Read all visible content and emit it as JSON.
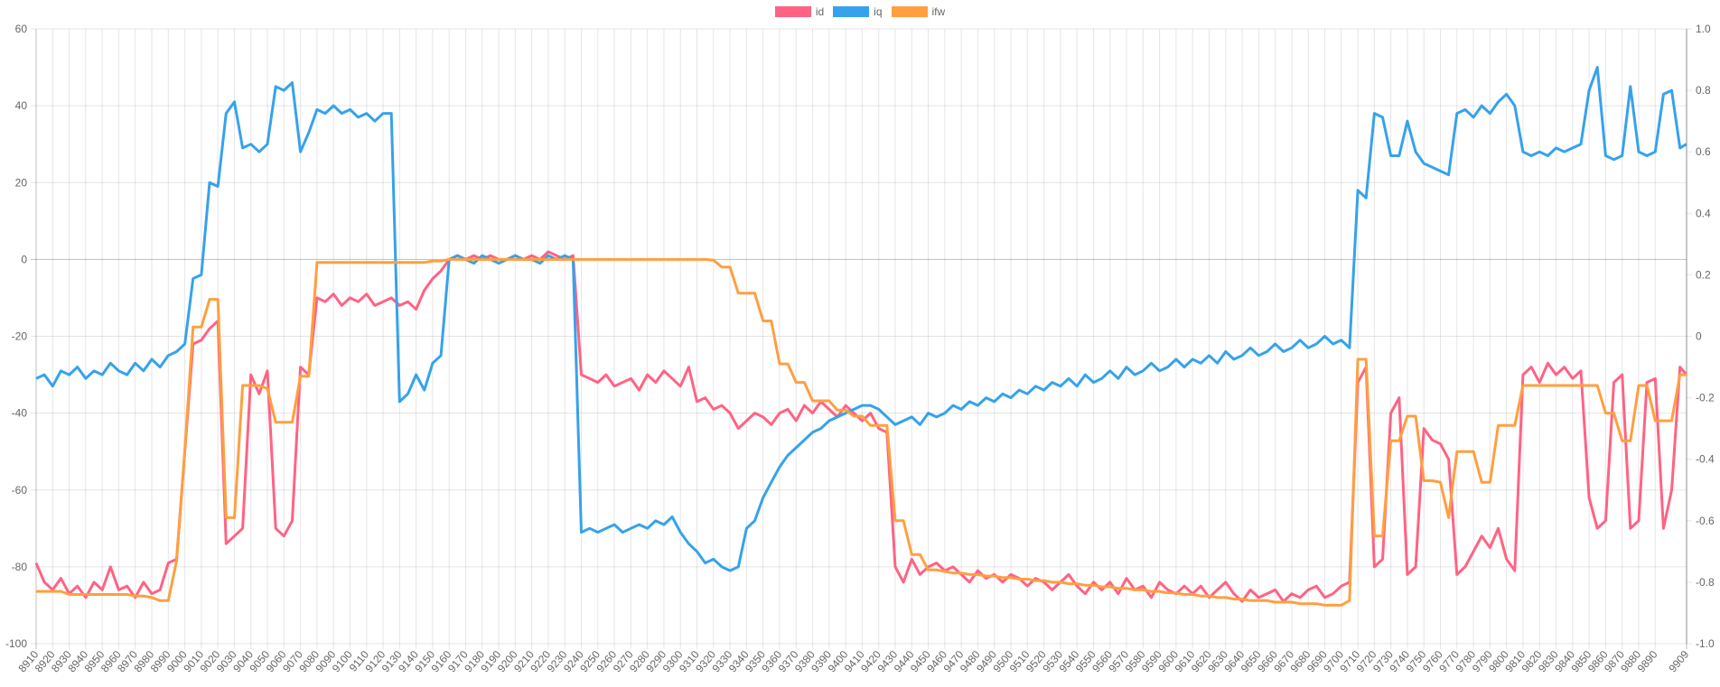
{
  "chart_data": {
    "type": "line",
    "title": "",
    "legend_position": "top",
    "grid": true,
    "y_left": {
      "range": [
        -100,
        60
      ],
      "ticks": [
        "60",
        "40",
        "20",
        "0",
        "-20",
        "-40",
        "-60",
        "-80",
        "-100"
      ]
    },
    "y_right": {
      "range": [
        -1.0,
        1.0
      ],
      "ticks": [
        "1.0",
        "0.8",
        "0.6",
        "0.4",
        "0.2",
        "0",
        "-0.2",
        "-0.4",
        "-0.6",
        "-0.8",
        "-1.0"
      ]
    },
    "x_range": [
      8910,
      9909
    ],
    "x_tick_labels": [
      8910,
      8920,
      8930,
      8940,
      8950,
      8960,
      8970,
      8980,
      8990,
      9000,
      9010,
      9020,
      9030,
      9040,
      9050,
      9060,
      9070,
      9080,
      9090,
      9100,
      9110,
      9120,
      9130,
      9140,
      9150,
      9160,
      9170,
      9180,
      9190,
      9200,
      9210,
      9220,
      9230,
      9240,
      9250,
      9260,
      9270,
      9280,
      9290,
      9300,
      9310,
      9320,
      9330,
      9340,
      9350,
      9360,
      9370,
      9380,
      9390,
      9400,
      9410,
      9420,
      9430,
      9440,
      9450,
      9460,
      9470,
      9480,
      9490,
      9500,
      9510,
      9520,
      9530,
      9540,
      9550,
      9560,
      9570,
      9580,
      9590,
      9600,
      9610,
      9620,
      9630,
      9640,
      9650,
      9660,
      9670,
      9680,
      9690,
      9700,
      9710,
      9720,
      9730,
      9740,
      9750,
      9760,
      9770,
      9780,
      9790,
      9800,
      9810,
      9820,
      9830,
      9840,
      9850,
      9860,
      9870,
      9880,
      9890,
      9909
    ],
    "x_start": 8910,
    "x_step": 5,
    "x_last": 9909,
    "series": [
      {
        "name": "id",
        "axis": "left",
        "color": "#ff6384",
        "values": [
          -79,
          -84,
          -86,
          -83,
          -87,
          -85,
          -88,
          -84,
          -86,
          -80,
          -86,
          -85,
          -88,
          -84,
          -87,
          -86,
          -79,
          -78,
          -50,
          -22,
          -21,
          -18,
          -16,
          -74,
          -72,
          -70,
          -30,
          -35,
          -29,
          -70,
          -72,
          -68,
          -28,
          -30,
          -10,
          -11,
          -9,
          -12,
          -10,
          -11,
          -9,
          -12,
          -11,
          -10,
          -12,
          -11,
          -13,
          -8,
          -5,
          -3,
          0,
          1,
          0,
          1,
          0,
          1,
          0,
          0,
          1,
          0,
          1,
          0,
          2,
          1,
          0,
          1,
          -30,
          -31,
          -32,
          -30,
          -33,
          -32,
          -31,
          -34,
          -30,
          -32,
          -29,
          -31,
          -33,
          -28,
          -37,
          -36,
          -39,
          -38,
          -40,
          -44,
          -42,
          -40,
          -41,
          -43,
          -40,
          -39,
          -42,
          -38,
          -40,
          -37,
          -39,
          -41,
          -38,
          -40,
          -42,
          -40,
          -44,
          -45,
          -80,
          -84,
          -78,
          -82,
          -80,
          -79,
          -81,
          -80,
          -82,
          -84,
          -81,
          -83,
          -82,
          -84,
          -82,
          -83,
          -85,
          -83,
          -84,
          -86,
          -84,
          -82,
          -85,
          -87,
          -84,
          -86,
          -84,
          -87,
          -83,
          -86,
          -85,
          -88,
          -84,
          -86,
          -87,
          -85,
          -87,
          -85,
          -88,
          -86,
          -84,
          -87,
          -89,
          -86,
          -88,
          -87,
          -86,
          -89,
          -87,
          -88,
          -86,
          -85,
          -88,
          -87,
          -85,
          -84,
          -32,
          -28,
          -80,
          -78,
          -40,
          -36,
          -82,
          -80,
          -44,
          -47,
          -48,
          -52,
          -82,
          -80,
          -76,
          -72,
          -75,
          -70,
          -78,
          -81,
          -30,
          -28,
          -32,
          -27,
          -30,
          -28,
          -31,
          -29,
          -62,
          -70,
          -68,
          -32,
          -30,
          -70,
          -68,
          -32,
          -31,
          -70,
          -60,
          -28,
          -30
        ]
      },
      {
        "name": "iq",
        "axis": "left",
        "color": "#36a2eb",
        "values": [
          -31,
          -30,
          -33,
          -29,
          -30,
          -28,
          -31,
          -29,
          -30,
          -27,
          -29,
          -30,
          -27,
          -29,
          -26,
          -28,
          -25,
          -24,
          -22,
          -5,
          -4,
          20,
          19,
          38,
          41,
          29,
          30,
          28,
          30,
          45,
          44,
          46,
          28,
          33,
          39,
          38,
          40,
          38,
          39,
          37,
          38,
          36,
          38,
          38,
          -37,
          -35,
          -30,
          -34,
          -27,
          -25,
          0,
          1,
          0,
          -1,
          1,
          0,
          -1,
          0,
          1,
          0,
          0,
          -1,
          1,
          0,
          1,
          0,
          -71,
          -70,
          -71,
          -70,
          -69,
          -71,
          -70,
          -69,
          -70,
          -68,
          -69,
          -67,
          -71,
          -74,
          -76,
          -79,
          -78,
          -80,
          -81,
          -80,
          -70,
          -68,
          -62,
          -58,
          -54,
          -51,
          -49,
          -47,
          -45,
          -44,
          -42,
          -41,
          -40,
          -39,
          -38,
          -38,
          -39,
          -41,
          -43,
          -42,
          -41,
          -43,
          -40,
          -41,
          -40,
          -38,
          -39,
          -37,
          -38,
          -36,
          -37,
          -35,
          -36,
          -34,
          -35,
          -33,
          -34,
          -32,
          -33,
          -31,
          -33,
          -30,
          -32,
          -31,
          -29,
          -31,
          -28,
          -30,
          -29,
          -27,
          -29,
          -28,
          -26,
          -28,
          -26,
          -27,
          -25,
          -27,
          -24,
          -26,
          -25,
          -23,
          -25,
          -24,
          -22,
          -24,
          -23,
          -21,
          -23,
          -22,
          -20,
          -22,
          -21,
          -23,
          18,
          16,
          38,
          37,
          27,
          27,
          36,
          28,
          25,
          24,
          23,
          22,
          38,
          39,
          37,
          40,
          38,
          41,
          43,
          40,
          28,
          27,
          28,
          27,
          29,
          28,
          29,
          30,
          44,
          50,
          27,
          26,
          27,
          45,
          28,
          27,
          28,
          43,
          44,
          29,
          30
        ]
      },
      {
        "name": "ifw",
        "axis": "right",
        "color": "#ff9f40",
        "values": [
          -0.83,
          -0.83,
          -0.83,
          -0.83,
          -0.84,
          -0.84,
          -0.84,
          -0.84,
          -0.84,
          -0.84,
          -0.84,
          -0.84,
          -0.845,
          -0.845,
          -0.85,
          -0.86,
          -0.86,
          -0.73,
          -0.37,
          0.03,
          0.03,
          0.12,
          0.12,
          -0.59,
          -0.59,
          -0.16,
          -0.16,
          -0.16,
          -0.17,
          -0.28,
          -0.28,
          -0.28,
          -0.13,
          -0.13,
          0.24,
          0.24,
          0.24,
          0.24,
          0.24,
          0.24,
          0.24,
          0.24,
          0.24,
          0.24,
          0.24,
          0.24,
          0.24,
          0.24,
          0.245,
          0.245,
          0.25,
          0.25,
          0.25,
          0.25,
          0.25,
          0.25,
          0.25,
          0.25,
          0.25,
          0.25,
          0.25,
          0.25,
          0.25,
          0.25,
          0.25,
          0.25,
          0.25,
          0.25,
          0.25,
          0.25,
          0.25,
          0.25,
          0.25,
          0.25,
          0.25,
          0.25,
          0.25,
          0.25,
          0.25,
          0.25,
          0.25,
          0.25,
          0.248,
          0.225,
          0.225,
          0.14,
          0.14,
          0.14,
          0.05,
          0.05,
          -0.09,
          -0.09,
          -0.15,
          -0.15,
          -0.21,
          -0.21,
          -0.21,
          -0.24,
          -0.24,
          -0.26,
          -0.26,
          -0.29,
          -0.29,
          -0.29,
          -0.6,
          -0.6,
          -0.71,
          -0.71,
          -0.76,
          -0.76,
          -0.765,
          -0.77,
          -0.77,
          -0.775,
          -0.775,
          -0.78,
          -0.78,
          -0.785,
          -0.785,
          -0.79,
          -0.79,
          -0.795,
          -0.795,
          -0.8,
          -0.8,
          -0.805,
          -0.805,
          -0.81,
          -0.81,
          -0.815,
          -0.815,
          -0.82,
          -0.82,
          -0.825,
          -0.825,
          -0.83,
          -0.83,
          -0.835,
          -0.835,
          -0.84,
          -0.84,
          -0.845,
          -0.845,
          -0.85,
          -0.85,
          -0.855,
          -0.855,
          -0.86,
          -0.86,
          -0.86,
          -0.865,
          -0.865,
          -0.865,
          -0.87,
          -0.87,
          -0.87,
          -0.875,
          -0.875,
          -0.875,
          -0.86,
          -0.075,
          -0.075,
          -0.65,
          -0.65,
          -0.34,
          -0.34,
          -0.26,
          -0.26,
          -0.47,
          -0.47,
          -0.475,
          -0.59,
          -0.375,
          -0.375,
          -0.375,
          -0.475,
          -0.475,
          -0.29,
          -0.29,
          -0.29,
          -0.16,
          -0.16,
          -0.16,
          -0.16,
          -0.16,
          -0.16,
          -0.16,
          -0.16,
          -0.16,
          -0.16,
          -0.25,
          -0.25,
          -0.34,
          -0.34,
          -0.16,
          -0.16,
          -0.275,
          -0.275,
          -0.275,
          -0.125,
          -0.125
        ]
      }
    ]
  }
}
